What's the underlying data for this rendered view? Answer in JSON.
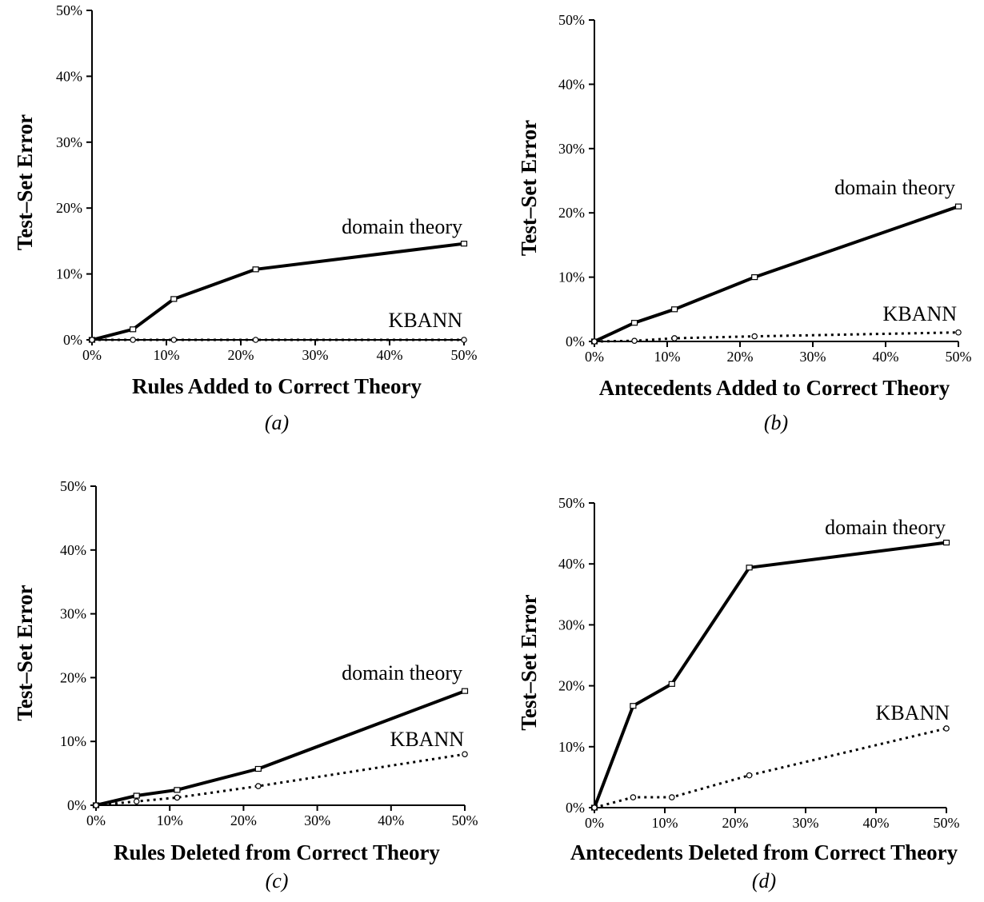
{
  "chart_data": [
    {
      "type": "line",
      "caption": "(a)",
      "xlabel": "Rules Added to Correct Theory",
      "ylabel": "Test–Set Error",
      "xlim": [
        0,
        50
      ],
      "ylim": [
        0,
        50
      ],
      "xticks": [
        "0%",
        "10%",
        "20%",
        "30%",
        "40%",
        "50%"
      ],
      "yticks": [
        "0%",
        "10%",
        "20%",
        "30%",
        "40%",
        "50%"
      ],
      "series": [
        {
          "name": "domain theory",
          "style": "solid",
          "x": [
            0,
            5.5,
            11,
            22,
            50
          ],
          "y": [
            0,
            1.6,
            6.2,
            10.7,
            14.6
          ]
        },
        {
          "name": "KBANN",
          "style": "dotted",
          "x": [
            0,
            5.5,
            11,
            22,
            50
          ],
          "y": [
            0,
            0,
            0,
            0,
            0
          ]
        }
      ]
    },
    {
      "type": "line",
      "caption": "(b)",
      "xlabel": "Antecedents Added to Correct Theory",
      "ylabel": "Test–Set Error",
      "xlim": [
        0,
        50
      ],
      "ylim": [
        0,
        50
      ],
      "xticks": [
        "0%",
        "10%",
        "20%",
        "30%",
        "40%",
        "50%"
      ],
      "yticks": [
        "0%",
        "10%",
        "20%",
        "30%",
        "40%",
        "50%"
      ],
      "series": [
        {
          "name": "domain theory",
          "style": "solid",
          "x": [
            0,
            5.5,
            11,
            22,
            50
          ],
          "y": [
            0,
            2.9,
            5.0,
            10.0,
            21.0
          ]
        },
        {
          "name": "KBANN",
          "style": "dotted",
          "x": [
            0,
            5.5,
            11,
            22,
            50
          ],
          "y": [
            0,
            0.1,
            0.5,
            0.8,
            1.4
          ]
        }
      ]
    },
    {
      "type": "line",
      "caption": "(c)",
      "xlabel": "Rules Deleted from Correct Theory",
      "ylabel": "Test–Set Error",
      "xlim": [
        0,
        50
      ],
      "ylim": [
        0,
        50
      ],
      "xticks": [
        "0%",
        "10%",
        "20%",
        "30%",
        "40%",
        "50%"
      ],
      "yticks": [
        "0%",
        "10%",
        "20%",
        "30%",
        "40%",
        "50%"
      ],
      "series": [
        {
          "name": "domain theory",
          "style": "solid",
          "x": [
            0,
            5.5,
            11,
            22,
            50
          ],
          "y": [
            0,
            1.5,
            2.4,
            5.7,
            17.9
          ]
        },
        {
          "name": "KBANN",
          "style": "dotted",
          "x": [
            0,
            5.5,
            11,
            22,
            50
          ],
          "y": [
            0,
            0.6,
            1.2,
            3.0,
            8.0
          ]
        }
      ]
    },
    {
      "type": "line",
      "caption": "(d)",
      "xlabel": "Antecedents Deleted from Correct Theory",
      "ylabel": "Test–Set Error",
      "xlim": [
        0,
        50
      ],
      "ylim": [
        0,
        50
      ],
      "xticks": [
        "0%",
        "10%",
        "20%",
        "30%",
        "40%",
        "50%"
      ],
      "yticks": [
        "0%",
        "10%",
        "20%",
        "30%",
        "40%",
        "50%"
      ],
      "series": [
        {
          "name": "domain theory",
          "style": "solid",
          "x": [
            0,
            5.5,
            11,
            22,
            50
          ],
          "y": [
            0,
            16.7,
            20.3,
            39.4,
            43.5
          ]
        },
        {
          "name": "KBANN",
          "style": "dotted",
          "x": [
            0,
            5.5,
            11,
            22,
            50
          ],
          "y": [
            0,
            1.7,
            1.7,
            5.3,
            13.0
          ]
        }
      ]
    }
  ]
}
